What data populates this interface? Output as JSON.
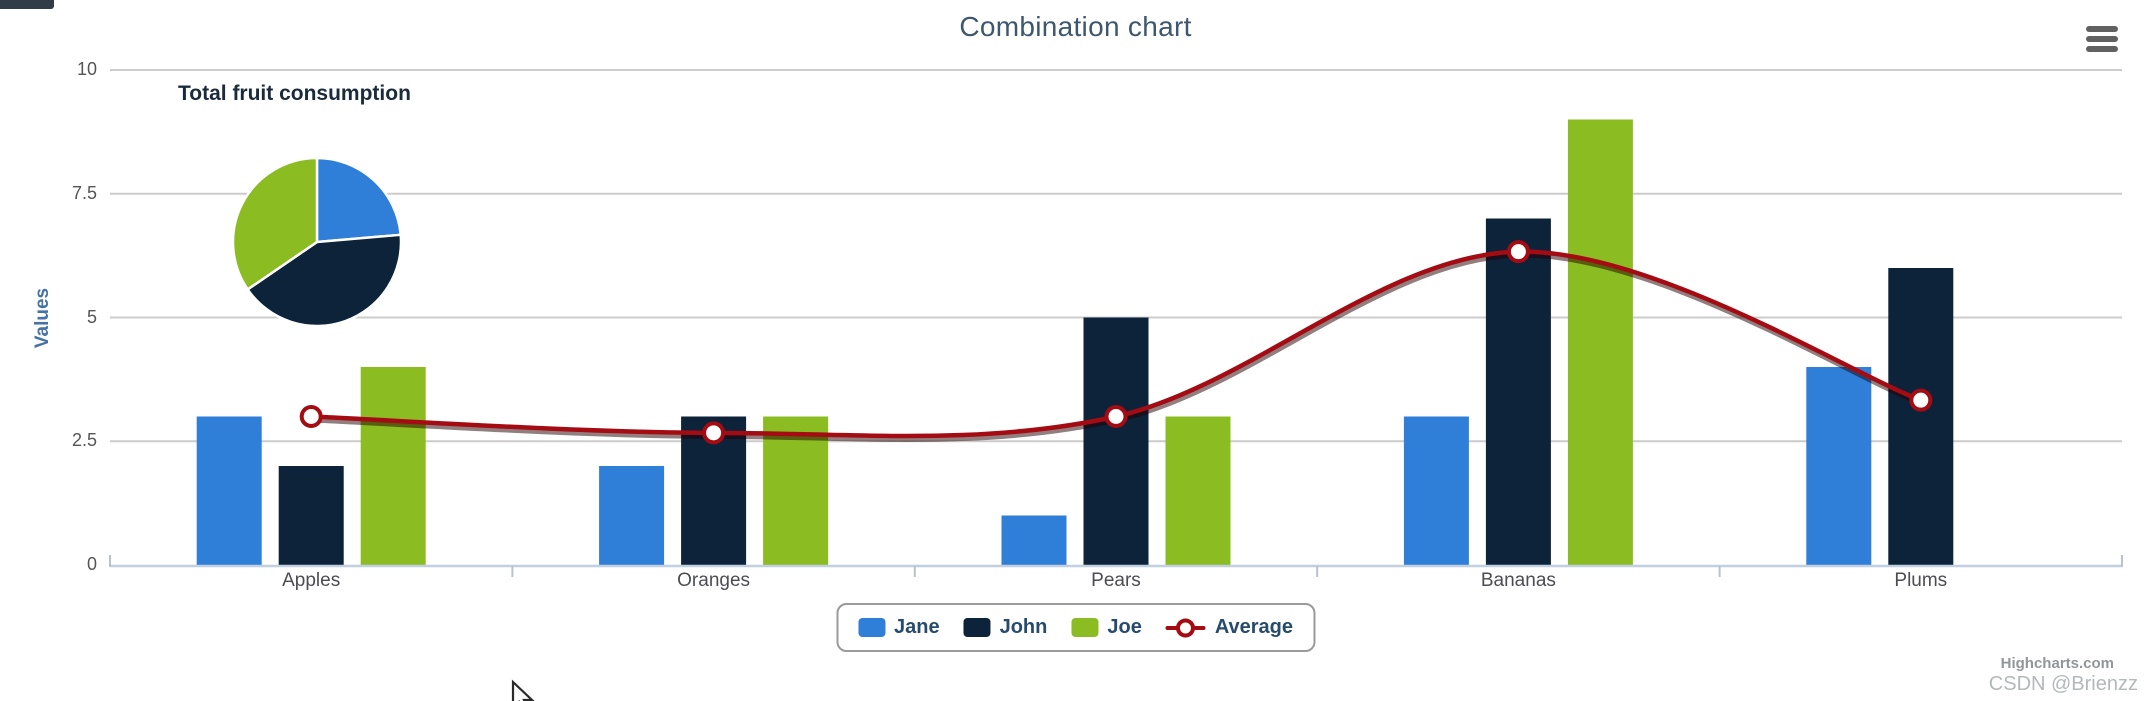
{
  "chart": {
    "title": "Combination chart",
    "background_color": "#ffffff",
    "title_color": "#3E576F"
  },
  "chart_data": {
    "type": "combination: column + spline + pie",
    "categories": [
      "Apples",
      "Oranges",
      "Pears",
      "Bananas",
      "Plums"
    ],
    "series": [
      {
        "name": "Jane",
        "type": "column",
        "color": "#2f7ed8",
        "values": [
          3,
          2,
          1,
          3,
          4
        ]
      },
      {
        "name": "John",
        "type": "column",
        "color": "#0d233a",
        "values": [
          2,
          3,
          5,
          7,
          6
        ]
      },
      {
        "name": "Joe",
        "type": "column",
        "color": "#8bbc21",
        "values": [
          4,
          3,
          3,
          9,
          0
        ]
      },
      {
        "name": "Average",
        "type": "spline",
        "color": "#a50b12",
        "marker": "white circle with red ring",
        "values": [
          3,
          2.67,
          3,
          6.33,
          3.33
        ]
      }
    ],
    "pie": {
      "label": "Total fruit consumption",
      "slices": [
        {
          "name": "Jane",
          "value": 13,
          "color": "#2f7ed8"
        },
        {
          "name": "John",
          "value": 23,
          "color": "#0d233a"
        },
        {
          "name": "Joe",
          "value": 19,
          "color": "#8bbc21"
        }
      ],
      "start_angle_deg": 0,
      "border_color": "#ffffff"
    },
    "xlabel": "",
    "ylabel": "Values",
    "y_ticks": [
      0,
      2.5,
      5,
      7.5,
      10
    ],
    "ylim": [
      0,
      10
    ],
    "grid": true,
    "gridline_color": "#cccccc",
    "axis_line_color": "#C0D0E0",
    "tick_label_color": "#555555",
    "legend_position": "bottom-center"
  },
  "legend": {
    "items": [
      {
        "label": "Jane",
        "color": "#2f7ed8",
        "icon": "square"
      },
      {
        "label": "John",
        "color": "#0d233a",
        "icon": "square"
      },
      {
        "label": "Joe",
        "color": "#8bbc21",
        "icon": "square"
      },
      {
        "label": "Average",
        "color": "#a50b12",
        "icon": "line-with-ring"
      }
    ]
  },
  "menu": {
    "icon": "hamburger-menu-icon"
  },
  "credits": {
    "highcharts": "Highcharts.com",
    "watermark": "CSDN @Brienzz"
  }
}
